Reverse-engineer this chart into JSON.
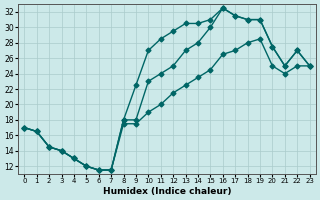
{
  "xlabel": "Humidex (Indice chaleur)",
  "bg_color": "#cce9e9",
  "grid_color": "#aacccc",
  "line_color": "#006666",
  "xlim": [
    -0.5,
    23.5
  ],
  "ylim": [
    11,
    33
  ],
  "yticks": [
    12,
    14,
    16,
    18,
    20,
    22,
    24,
    26,
    28,
    30,
    32
  ],
  "xticks": [
    0,
    1,
    2,
    3,
    4,
    5,
    6,
    7,
    8,
    9,
    10,
    11,
    12,
    13,
    14,
    15,
    16,
    17,
    18,
    19,
    20,
    21,
    22,
    23
  ],
  "line1_x": [
    0,
    1,
    2,
    3,
    4,
    5,
    6,
    7,
    8,
    9,
    10,
    11,
    12,
    13,
    14,
    15,
    16,
    17,
    18,
    19,
    20,
    21,
    22,
    23
  ],
  "line1_y": [
    17,
    16.5,
    14.5,
    14,
    13,
    12,
    11.5,
    11.5,
    18,
    22.5,
    27,
    28.5,
    29.5,
    30.5,
    30.5,
    31,
    32.5,
    31.5,
    31,
    31,
    27.5,
    25,
    27,
    25
  ],
  "line2_x": [
    0,
    1,
    2,
    3,
    4,
    5,
    6,
    7,
    8,
    9,
    10,
    11,
    12,
    13,
    14,
    15,
    16,
    17,
    18,
    19,
    20,
    21,
    22,
    23
  ],
  "line2_y": [
    17,
    16.5,
    14.5,
    14,
    13,
    12,
    11.5,
    11.5,
    18,
    18,
    23,
    24,
    25,
    27,
    28,
    30,
    32.5,
    31.5,
    31,
    31,
    27.5,
    25,
    27,
    25
  ],
  "line3_x": [
    0,
    1,
    2,
    3,
    4,
    5,
    6,
    7,
    8,
    9,
    10,
    11,
    12,
    13,
    14,
    15,
    16,
    17,
    18,
    19,
    20,
    21,
    22,
    23
  ],
  "line3_y": [
    17,
    16.5,
    14.5,
    14,
    13,
    12,
    11.5,
    11.5,
    17.5,
    17.5,
    19,
    20,
    21.5,
    22.5,
    23.5,
    24.5,
    26.5,
    27,
    28,
    28.5,
    25,
    24,
    25,
    25
  ],
  "marker_size": 2.5,
  "line_width": 1.0
}
